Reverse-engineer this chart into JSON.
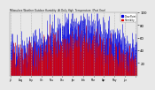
{
  "title": "Milwaukee Weather Outdoor Humidity At Daily High Temperature (Past Year)",
  "background_color": "#e8e8e8",
  "plot_bg_color": "#e8e8e8",
  "bar_color_blue": "#0000dd",
  "bar_color_red": "#dd0000",
  "legend_blue": "Dew Point",
  "legend_red": "Humidity",
  "ylim": [
    0,
    100
  ],
  "yticks": [
    20,
    40,
    60,
    80,
    100
  ],
  "n_points": 365,
  "seed": 42,
  "grid_color": "#aaaaaa",
  "n_months": 13
}
